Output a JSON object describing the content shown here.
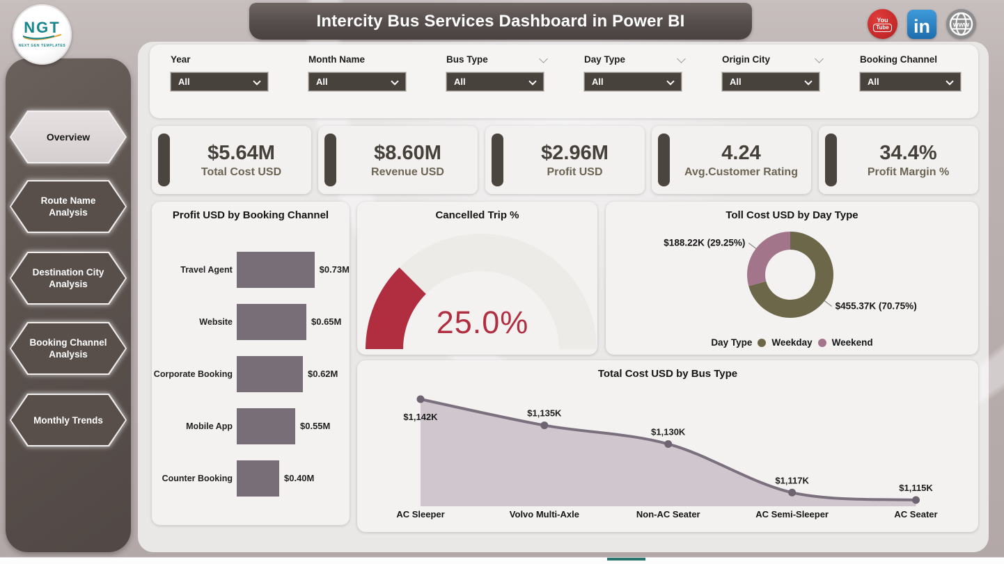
{
  "header": {
    "title": "Intercity Bus Services Dashboard in Power BI",
    "logo": {
      "text": "NGT",
      "subtext": "NEXT GEN TEMPLATES"
    },
    "social": {
      "youtube_line1": "You",
      "youtube_line2": "Tube",
      "linkedin_label": "in",
      "website_label": "www"
    }
  },
  "filters": {
    "items": [
      {
        "label": "Year",
        "value": "All"
      },
      {
        "label": "Month Name",
        "value": "All"
      },
      {
        "label": "Bus Type",
        "value": "All"
      },
      {
        "label": "Day Type",
        "value": "All"
      },
      {
        "label": "Origin City",
        "value": "All"
      },
      {
        "label": "Booking Channel",
        "value": "All"
      }
    ]
  },
  "sidebar": {
    "items": [
      {
        "label": "Overview",
        "active": true
      },
      {
        "label": "Route Name Analysis",
        "active": false
      },
      {
        "label": "Destination City Analysis",
        "active": false
      },
      {
        "label": "Booking Channel Analysis",
        "active": false
      },
      {
        "label": "Monthly Trends",
        "active": false
      }
    ]
  },
  "kpis": [
    {
      "value": "$5.64M",
      "label": "Total Cost USD"
    },
    {
      "value": "$8.60M",
      "label": "Revenue USD"
    },
    {
      "value": "$2.96M",
      "label": "Profit USD"
    },
    {
      "value": "4.24",
      "label": "Avg.Customer Rating"
    },
    {
      "value": "34.4%",
      "label": "Profit Margin %"
    }
  ],
  "chart_data": [
    {
      "type": "bar",
      "title": "Profit USD by Booking Channel",
      "orientation": "horizontal",
      "categories": [
        "Travel Agent",
        "Website",
        "Corporate Booking",
        "Mobile App",
        "Counter Booking"
      ],
      "values": [
        0.73,
        0.65,
        0.62,
        0.55,
        0.4
      ],
      "value_labels": [
        "$0.73M",
        "$0.65M",
        "$0.62M",
        "$0.55M",
        "$0.40M"
      ],
      "xlim": [
        0,
        0.8
      ],
      "bar_color": "#786e78"
    },
    {
      "type": "gauge",
      "title": "Cancelled Trip %",
      "value": 25.0,
      "display": "25.0%",
      "min": 0,
      "max": 100,
      "span_deg": 180,
      "color": "#b02e3f",
      "track_color": "#edebe8"
    },
    {
      "type": "pie",
      "title": "Toll Cost USD by Day Type",
      "legend_title": "Day Type",
      "legend_position": "bottom",
      "slices": [
        {
          "name": "Weekday",
          "value_label": "$455.37K (70.75%)",
          "value_k": 455.37,
          "pct": 70.75,
          "color": "#6d674a"
        },
        {
          "name": "Weekend",
          "value_label": "$188.22K (29.25%)",
          "value_k": 188.22,
          "pct": 29.25,
          "color": "#a3758a"
        }
      ]
    },
    {
      "type": "area",
      "title": "Total Cost USD by Bus Type",
      "categories": [
        "AC Sleeper",
        "Volvo Multi-Axle",
        "Non-AC Seater",
        "AC Semi-Sleeper",
        "AC Seater"
      ],
      "values": [
        1142,
        1135,
        1130,
        1117,
        1115
      ],
      "value_labels": [
        "$1,142K",
        "$1,135K",
        "$1,130K",
        "$1,117K",
        "$1,115K"
      ],
      "line_color": "#7b707d",
      "marker_color": "#6e6370",
      "fill_color": "#ccc4ca",
      "label_color": "#1c1c1c"
    }
  ],
  "footer": {
    "accent_color": "#27756c"
  }
}
